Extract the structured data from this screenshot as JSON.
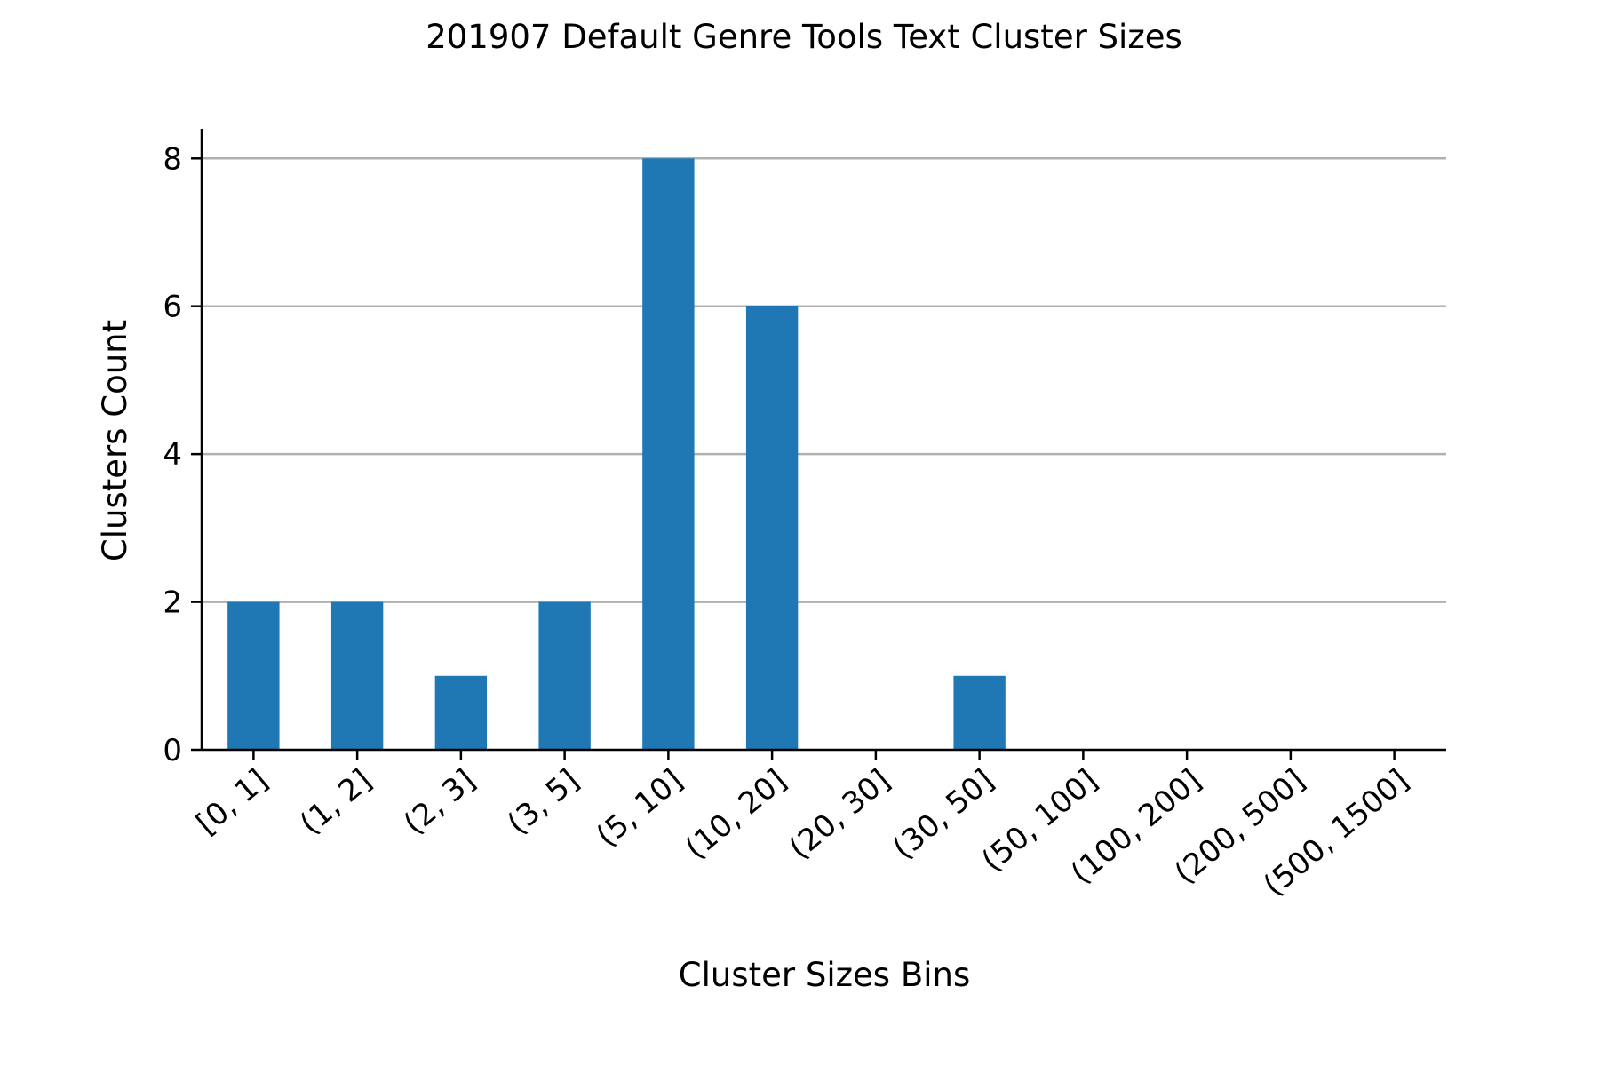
{
  "chart_data": {
    "type": "bar",
    "title": "201907 Default Genre Tools Text Cluster Sizes",
    "xlabel": "Cluster Sizes Bins",
    "ylabel": "Clusters Count",
    "categories": [
      "[0, 1]",
      "(1, 2]",
      "(2, 3]",
      "(3, 5]",
      "(5, 10]",
      "(10, 20]",
      "(20, 30]",
      "(30, 50]",
      "(50, 100]",
      "(100, 200]",
      "(200, 500]",
      "(500, 1500]"
    ],
    "values": [
      2,
      2,
      1,
      2,
      8,
      6,
      0,
      1,
      0,
      0,
      0,
      0
    ],
    "ylim": [
      0,
      8.4
    ],
    "yticks": [
      0,
      2,
      4,
      6,
      8
    ],
    "grid": "horizontal",
    "bar_color": "#1f77b4",
    "grid_color": "#b0b0b0"
  }
}
